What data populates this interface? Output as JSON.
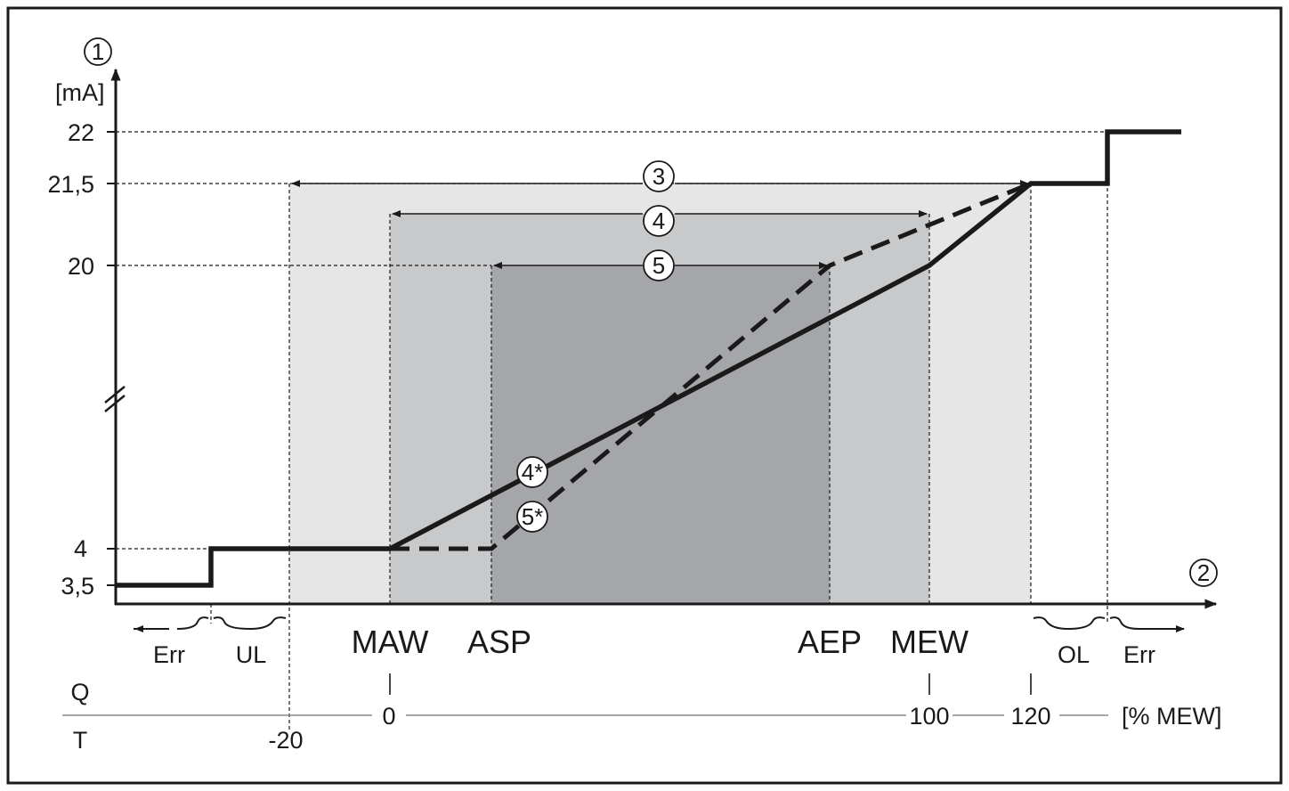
{
  "y_axis": {
    "marker": "1",
    "unit": "[mA]",
    "ticks": [
      "22",
      "21,5",
      "20",
      "4",
      "3,5"
    ]
  },
  "x_axis": {
    "marker": "2",
    "points": [
      "MAW",
      "ASP",
      "AEP",
      "MEW"
    ],
    "regions": {
      "err_left": "Err",
      "ul": "UL",
      "ol": "OL",
      "err_right": "Err"
    }
  },
  "scale": {
    "q_label": "Q",
    "t_label": "T",
    "t_minus20": "-20",
    "zero": "0",
    "hundred": "100",
    "one_twenty": "120",
    "unit": "[% MEW]"
  },
  "ranges": {
    "r3": "3",
    "r4": "4",
    "r5": "5"
  },
  "curves": {
    "c4": "4*",
    "c5": "5*"
  },
  "colors": {
    "frame": "#1a1a1a",
    "zone_outer": "#e6e6e7",
    "zone_middle": "#c8c9cb",
    "zone_inner": "#a5a6a9"
  }
}
